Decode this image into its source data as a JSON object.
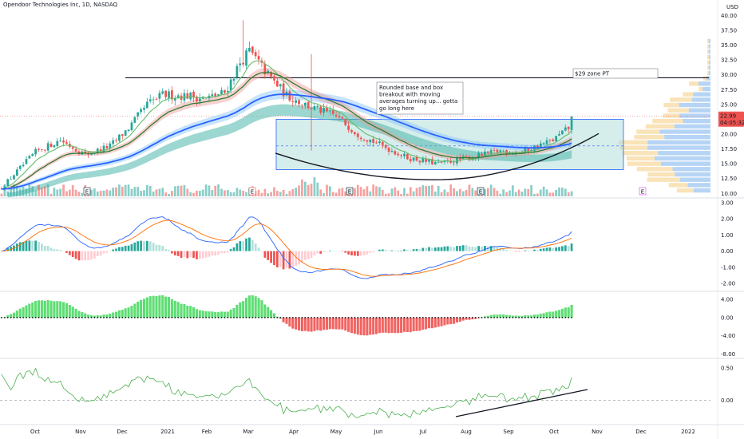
{
  "header": {
    "title": "Opendoor Technologies Inc, 1D, NASDAQ",
    "currency": "USD"
  },
  "colors": {
    "up": "#26a69a",
    "down": "#ef5350",
    "ema_fast": "#43a047",
    "ema_slow": "#2962ff",
    "macd": "#2962ff",
    "signal": "#ff6d00",
    "osc_up": "#4cd964",
    "osc_down": "#ef5350",
    "line3": "#4caf50",
    "box_fill": "#b2dfdb",
    "box_border": "#2962ff",
    "price_tag": "#ef5350"
  },
  "chart_data": [
    {
      "type": "candlestick",
      "name": "price",
      "xlabels": [
        "Oct",
        "Nov",
        "Dec",
        "2021",
        "Feb",
        "Mar",
        "Apr",
        "May",
        "Jun",
        "Jul",
        "Aug",
        "Sep",
        "Oct",
        "Nov",
        "Dec",
        "2022"
      ],
      "yticks": [
        "40.00",
        "37.50",
        "35.00",
        "32.50",
        "30.00",
        "27.50",
        "25.00",
        "22.50",
        "20.00",
        "17.50",
        "15.00",
        "12.50",
        "10.00"
      ],
      "ylim": [
        9.5,
        41
      ],
      "price_tag": {
        "value": "22.99",
        "countdown": "04:05:32"
      },
      "annotations": {
        "pt_label": "$29 zone PT",
        "note": [
          "Rounded base and box",
          "breakout with moving",
          "averages turning up... gotta",
          "go long here"
        ]
      },
      "earnings_markers": [
        "E",
        "E",
        "E",
        "E",
        "E"
      ],
      "levels": {
        "target": 29.5,
        "box_top": 22.5,
        "box_bottom": 14.0,
        "box_mid": 18.0
      }
    },
    {
      "type": "line",
      "name": "macd",
      "yticks": [
        "3.00",
        "2.00",
        "1.00",
        "0.00",
        "-1.00",
        "-2.00"
      ],
      "ylim": [
        -2.4,
        3.2
      ]
    },
    {
      "type": "bar",
      "name": "oscillator",
      "yticks": [
        "4.00",
        "0.00",
        "-4.00",
        "-8.00"
      ],
      "ylim": [
        -8.6,
        5.4
      ]
    },
    {
      "type": "line",
      "name": "third",
      "yticks": [
        "0.50",
        "0.00"
      ],
      "ylim": [
        -0.35,
        0.62
      ]
    }
  ]
}
